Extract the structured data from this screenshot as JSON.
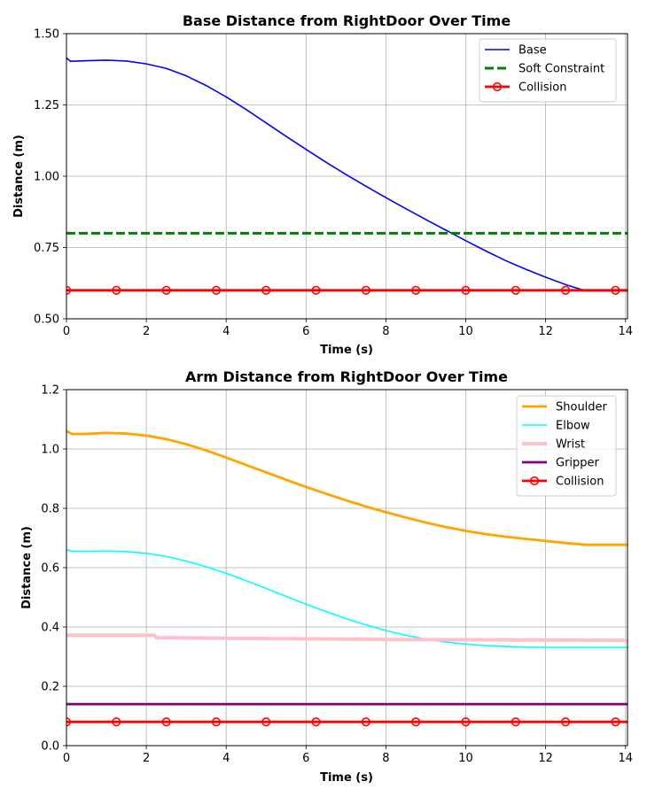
{
  "chart_data": [
    {
      "type": "line",
      "title": "Base Distance from RightDoor Over Time",
      "xlabel": "Time (s)",
      "ylabel": "Distance (m)",
      "xlim": [
        0,
        14.05
      ],
      "ylim": [
        0.5,
        1.5
      ],
      "xticks": [
        0,
        2,
        4,
        6,
        8,
        10,
        12,
        14
      ],
      "xtick_labels": [
        "0",
        "2",
        "4",
        "6",
        "8",
        "10",
        "12",
        "14"
      ],
      "yticks": [
        0.5,
        0.75,
        1.0,
        1.25,
        1.5
      ],
      "ytick_labels": [
        "0.50",
        "0.75",
        "1.00",
        "1.25",
        "1.50"
      ],
      "grid": true,
      "legend_position": "top-right",
      "series": [
        {
          "name": "Base",
          "color": "#0000ff",
          "style": "solid",
          "x": [
            0,
            0.1,
            0.5,
            1.0,
            1.5,
            2.0,
            2.5,
            3.0,
            3.5,
            4.0,
            4.5,
            5.0,
            5.5,
            6.0,
            6.5,
            7.0,
            7.5,
            8.0,
            8.5,
            9.0,
            9.5,
            10.0,
            10.5,
            11.0,
            11.5,
            12.0,
            12.5,
            13.0,
            13.5,
            14.05
          ],
          "values": [
            1.415,
            1.403,
            1.405,
            1.407,
            1.404,
            1.394,
            1.378,
            1.352,
            1.318,
            1.278,
            1.234,
            1.187,
            1.14,
            1.094,
            1.049,
            1.006,
            0.965,
            0.925,
            0.886,
            0.848,
            0.811,
            0.774,
            0.738,
            0.704,
            0.674,
            0.646,
            0.62,
            0.598,
            0.598,
            0.598
          ]
        },
        {
          "name": "Soft Constraint",
          "color": "#008000",
          "style": "dashed",
          "x": [
            0,
            14.05
          ],
          "values": [
            0.8,
            0.8
          ]
        },
        {
          "name": "Collision",
          "color": "#ff0000",
          "style": "solid-markers",
          "x": [
            0,
            1.25,
            2.5,
            3.75,
            5.0,
            6.25,
            7.5,
            8.75,
            10.0,
            11.25,
            12.5,
            13.75
          ],
          "values": [
            0.6,
            0.6,
            0.6,
            0.6,
            0.6,
            0.6,
            0.6,
            0.6,
            0.6,
            0.6,
            0.6,
            0.6
          ]
        }
      ]
    },
    {
      "type": "line",
      "title": "Arm Distance from RightDoor Over Time",
      "xlabel": "Time (s)",
      "ylabel": "Distance (m)",
      "xlim": [
        0,
        14.05
      ],
      "ylim": [
        0,
        1.2
      ],
      "xticks": [
        0,
        2,
        4,
        6,
        8,
        10,
        12,
        14
      ],
      "xtick_labels": [
        "0",
        "2",
        "4",
        "6",
        "8",
        "10",
        "12",
        "14"
      ],
      "yticks": [
        0,
        0.2,
        0.4,
        0.6,
        0.8,
        1.0,
        1.2
      ],
      "ytick_labels": [
        "0.0",
        "0.2",
        "0.4",
        "0.6",
        "0.8",
        "1.0",
        "1.2"
      ],
      "grid": true,
      "legend_position": "top-right",
      "series": [
        {
          "name": "Shoulder",
          "color": "#ffa500",
          "style": "solid",
          "x": [
            0,
            0.15,
            0.5,
            1.0,
            1.5,
            2.0,
            2.5,
            3.0,
            3.5,
            4.0,
            4.5,
            5.0,
            5.5,
            6.0,
            6.5,
            7.0,
            7.5,
            8.0,
            8.5,
            9.0,
            9.5,
            10.0,
            10.5,
            11.0,
            11.5,
            12.0,
            12.5,
            13.0,
            13.5,
            14.05
          ],
          "values": [
            1.06,
            1.05,
            1.051,
            1.054,
            1.052,
            1.045,
            1.033,
            1.016,
            0.995,
            0.971,
            0.946,
            0.921,
            0.896,
            0.872,
            0.849,
            0.827,
            0.806,
            0.787,
            0.769,
            0.752,
            0.737,
            0.724,
            0.713,
            0.704,
            0.697,
            0.69,
            0.683,
            0.677,
            0.677,
            0.677
          ]
        },
        {
          "name": "Elbow",
          "color": "#00ffff",
          "style": "solid",
          "x": [
            0,
            0.15,
            0.5,
            1.0,
            1.5,
            2.0,
            2.5,
            3.0,
            3.5,
            4.0,
            4.5,
            5.0,
            5.5,
            6.0,
            6.5,
            7.0,
            7.5,
            8.0,
            8.5,
            9.0,
            9.5,
            10.0,
            10.5,
            11.0,
            11.5,
            12.0,
            12.5,
            13.0,
            13.5,
            14.05
          ],
          "values": [
            0.66,
            0.655,
            0.655,
            0.656,
            0.654,
            0.648,
            0.638,
            0.622,
            0.603,
            0.581,
            0.556,
            0.53,
            0.503,
            0.477,
            0.452,
            0.428,
            0.407,
            0.388,
            0.372,
            0.359,
            0.349,
            0.342,
            0.337,
            0.334,
            0.332,
            0.331,
            0.331,
            0.331,
            0.331,
            0.331
          ]
        },
        {
          "name": "Wrist",
          "color": "#ffc0cb",
          "style": "solid",
          "x": [
            0,
            2.2,
            2.25,
            4.0,
            8.0,
            12.0,
            14.05
          ],
          "values": [
            0.372,
            0.372,
            0.364,
            0.362,
            0.358,
            0.356,
            0.355
          ]
        },
        {
          "name": "Gripper",
          "color": "#800080",
          "style": "solid",
          "x": [
            0,
            14.05
          ],
          "values": [
            0.14,
            0.14
          ]
        },
        {
          "name": "Collision",
          "color": "#ff0000",
          "style": "solid-markers",
          "x": [
            0,
            1.25,
            2.5,
            3.75,
            5.0,
            6.25,
            7.5,
            8.75,
            10.0,
            11.25,
            12.5,
            13.75
          ],
          "values": [
            0.08,
            0.08,
            0.08,
            0.08,
            0.08,
            0.08,
            0.08,
            0.08,
            0.08,
            0.08,
            0.08,
            0.08
          ]
        }
      ]
    }
  ]
}
